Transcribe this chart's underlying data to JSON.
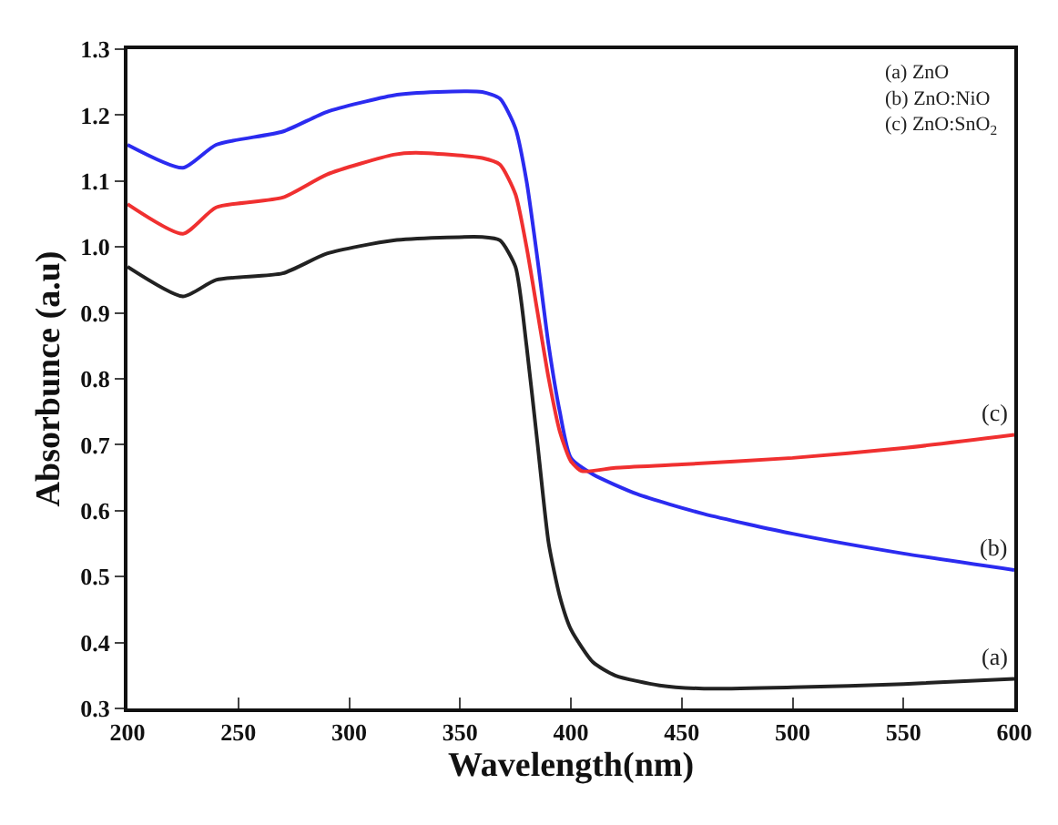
{
  "chart_data": {
    "type": "line",
    "xlabel": "Wavelength(nm)",
    "ylabel": "Absorbunce (a.u)",
    "xlim": [
      200,
      600
    ],
    "xticks": [
      200,
      250,
      300,
      350,
      400,
      450,
      500,
      550,
      600
    ],
    "ylim": [
      0.3,
      1.3
    ],
    "yticks": [
      0.3,
      0.4,
      0.5,
      0.6,
      0.7,
      0.8,
      0.9,
      {
        "value": 1,
        "label": "1.0"
      },
      1.1,
      1.2,
      1.3
    ],
    "grid": false,
    "legend": false,
    "marker": "none",
    "line_style": "solid",
    "annotations": [
      "(a) ZnO",
      "(b) ZnO:NiO",
      "(c) ZnO:SnO$_{2}$"
    ],
    "series": [
      {
        "name": "(a)",
        "color": "#222222",
        "x": [
          200,
          225,
          240,
          270,
          290,
          320,
          360,
          368,
          375,
          380,
          385,
          390,
          395,
          400,
          410,
          420,
          440,
          460,
          500,
          550,
          600
        ],
        "values": [
          0.97,
          0.925,
          0.95,
          0.96,
          0.99,
          1.01,
          1.015,
          1.01,
          0.97,
          0.85,
          0.7,
          0.55,
          0.47,
          0.42,
          0.37,
          0.35,
          0.335,
          0.33,
          0.332,
          0.337,
          0.345
        ]
      },
      {
        "name": "(b)",
        "color": "#2b2bf0",
        "x": [
          200,
          225,
          240,
          270,
          290,
          320,
          340,
          360,
          368,
          375,
          380,
          385,
          390,
          395,
          400,
          410,
          430,
          460,
          500,
          550,
          600
        ],
        "values": [
          1.155,
          1.12,
          1.155,
          1.175,
          1.205,
          1.23,
          1.235,
          1.235,
          1.225,
          1.18,
          1.1,
          0.98,
          0.85,
          0.75,
          0.68,
          0.655,
          0.625,
          0.595,
          0.565,
          0.535,
          0.51
        ]
      },
      {
        "name": "(c)",
        "color": "#f03030",
        "x": [
          200,
          225,
          240,
          270,
          290,
          320,
          330,
          360,
          368,
          375,
          380,
          385,
          390,
          395,
          400,
          405,
          420,
          450,
          500,
          550,
          600
        ],
        "values": [
          1.065,
          1.02,
          1.06,
          1.075,
          1.11,
          1.14,
          1.143,
          1.135,
          1.125,
          1.08,
          1.0,
          0.9,
          0.8,
          0.72,
          0.675,
          0.66,
          0.665,
          0.67,
          0.68,
          0.695,
          0.715
        ]
      }
    ]
  }
}
